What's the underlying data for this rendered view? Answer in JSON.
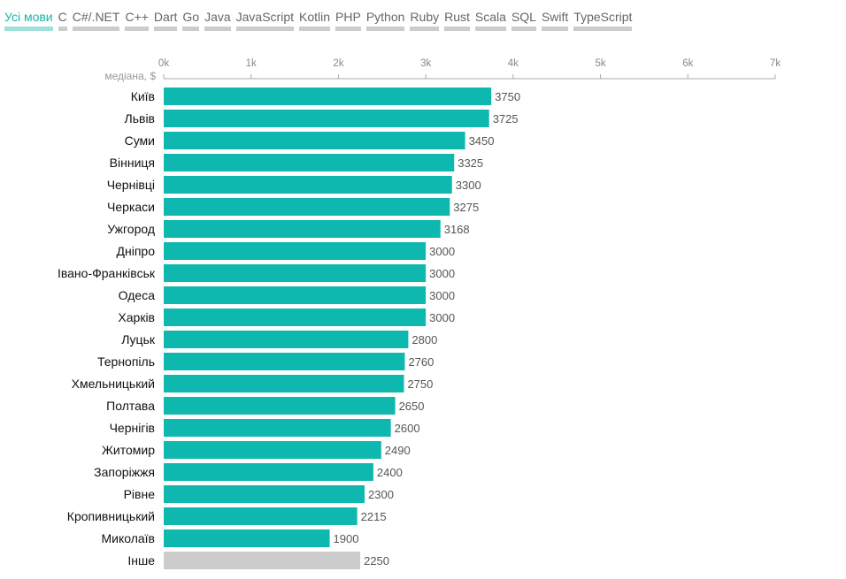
{
  "tabs": [
    {
      "label": "Усі мови",
      "active": true
    },
    {
      "label": "C"
    },
    {
      "label": "C#/.NET"
    },
    {
      "label": "C++"
    },
    {
      "label": "Dart"
    },
    {
      "label": "Go"
    },
    {
      "label": "Java"
    },
    {
      "label": "JavaScript"
    },
    {
      "label": "Kotlin"
    },
    {
      "label": "PHP"
    },
    {
      "label": "Python"
    },
    {
      "label": "Ruby"
    },
    {
      "label": "Rust"
    },
    {
      "label": "Scala"
    },
    {
      "label": "SQL"
    },
    {
      "label": "Swift"
    },
    {
      "label": "TypeScript"
    }
  ],
  "colors": {
    "bar": "#0fb8ae",
    "bar_other": "#cccccc",
    "accent": "#1ab4a9"
  },
  "chart_data": {
    "type": "bar",
    "orientation": "horizontal",
    "ylabel": "медіана, $",
    "xlim": [
      0,
      7000
    ],
    "xticks": [
      0,
      1000,
      2000,
      3000,
      4000,
      5000,
      6000,
      7000
    ],
    "xtick_labels": [
      "0k",
      "1k",
      "2k",
      "3k",
      "4k",
      "5k",
      "6k",
      "7k"
    ],
    "categories": [
      "Київ",
      "Львів",
      "Суми",
      "Вінниця",
      "Чернівці",
      "Черкаси",
      "Ужгород",
      "Дніпро",
      "Івано-Франківськ",
      "Одеса",
      "Харків",
      "Луцьк",
      "Тернопіль",
      "Хмельницький",
      "Полтава",
      "Чернігів",
      "Житомир",
      "Запоріжжя",
      "Рівне",
      "Кропивницький",
      "Миколаїв",
      "Інше"
    ],
    "values": [
      3750,
      3725,
      3450,
      3325,
      3300,
      3275,
      3168,
      3000,
      3000,
      3000,
      3000,
      2800,
      2760,
      2750,
      2650,
      2600,
      2490,
      2400,
      2300,
      2215,
      1900,
      2250
    ],
    "highlight_other": "Інше",
    "grid": false,
    "legend": "none"
  }
}
